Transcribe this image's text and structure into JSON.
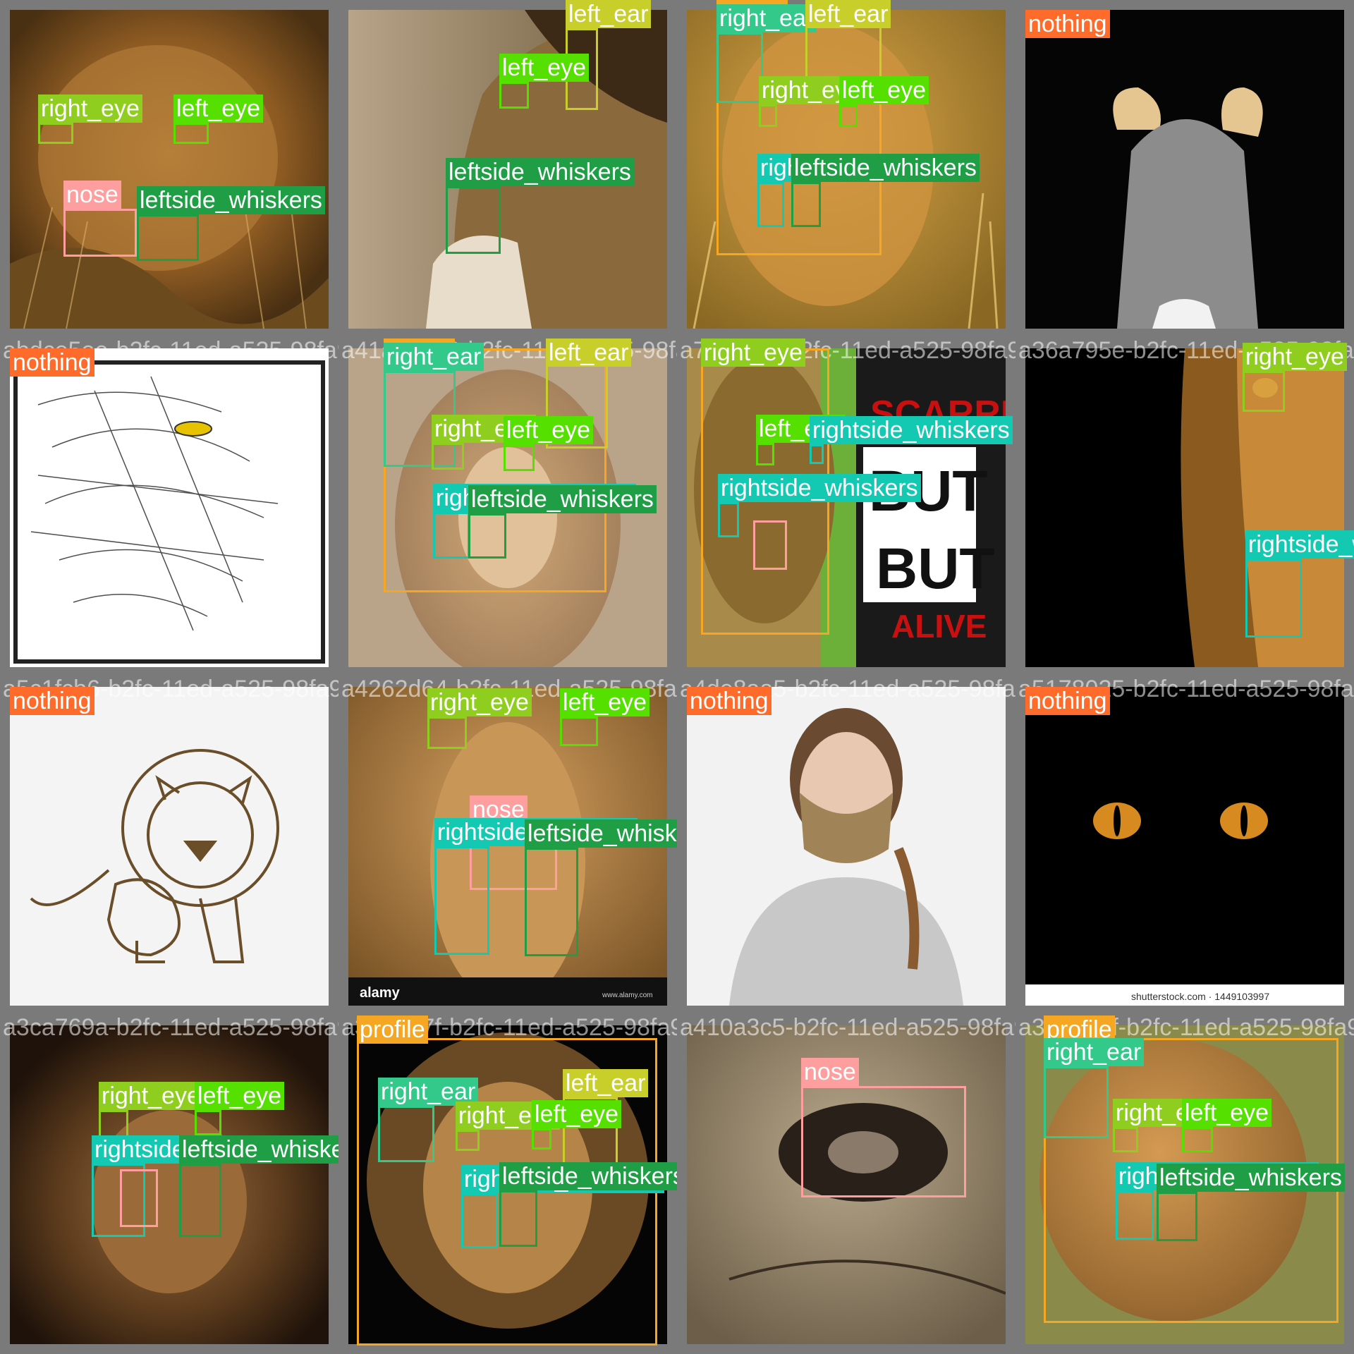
{
  "colors": {
    "nothing": "#ff6b2b",
    "profile": "#f5a623",
    "left_ear": "#c9cf2a",
    "right_ear": "#33c98a",
    "left_eye": "#55e000",
    "right_eye": "#8fce1e",
    "nose": "#ff9e9e",
    "leftside_whiskers": "#1f9e45",
    "rightside_whiskers": "#14c9b2"
  },
  "tiles": [
    {
      "filename": "",
      "scene": "lioness-grass",
      "dets": [
        {
          "cls": "right_eye",
          "label": "right_eye"
        },
        {
          "cls": "left_eye",
          "label": "left_eye"
        },
        {
          "cls": "nose",
          "label": "nose"
        },
        {
          "cls": "leftside_whiskers",
          "label": "leftside_whiskers"
        }
      ]
    },
    {
      "filename": "",
      "scene": "lion-profile",
      "dets": [
        {
          "cls": "left_ear",
          "label": "left_ear"
        },
        {
          "cls": "left_eye",
          "label": "left_eye"
        },
        {
          "cls": "leftside_whiskers",
          "label": "leftside_whiskers"
        }
      ]
    },
    {
      "filename": "",
      "scene": "lioness-bright",
      "dets": [
        {
          "cls": "profile",
          "label": "profile"
        },
        {
          "cls": "right_ear",
          "label": "right_ear"
        },
        {
          "cls": "left_ear",
          "label": "left_ear"
        },
        {
          "cls": "right_eye",
          "label": "right_eye"
        },
        {
          "cls": "left_eye",
          "label": "left_eye"
        },
        {
          "cls": "rightside_whiskers",
          "label": "rightside_whiskers"
        },
        {
          "cls": "leftside_whiskers",
          "label": "leftside_whiskers"
        }
      ]
    },
    {
      "filename": "",
      "scene": "headband",
      "dets": [
        {
          "cls": "nothing",
          "label": "nothing"
        }
      ]
    },
    {
      "filename": "abdce5ee-b2fc-11ed-a525-98fa9b3d2a7c.jpg",
      "scene": "sketch",
      "dets": [
        {
          "cls": "nothing",
          "label": "nothing"
        }
      ]
    },
    {
      "filename": "a41ac5e26-b2fc-11ed-a525-98fa9b3d2a7c.jpg",
      "scene": "lioness-front",
      "dets": [
        {
          "cls": "profile",
          "label": "profile"
        },
        {
          "cls": "right_ear",
          "label": "right_ear"
        },
        {
          "cls": "left_ear",
          "label": "left_ear"
        },
        {
          "cls": "right_eye",
          "label": "right_eye"
        },
        {
          "cls": "left_eye",
          "label": "left_eye"
        },
        {
          "cls": "rightside_whiskers",
          "label": "rightside_whiskers"
        },
        {
          "cls": "leftside_whiskers",
          "label": "leftside_whiskers"
        }
      ]
    },
    {
      "filename": "a7aef8c2-b2fc-11ed-a525-98fa9b3d2a7c.jpg",
      "scene": "scarred-poster",
      "dets": [
        {
          "cls": "profile",
          "label": "profile"
        },
        {
          "cls": "right_eye",
          "label": "right_eye"
        },
        {
          "cls": "left_eye",
          "label": "left_eye"
        },
        {
          "cls": "rightside_whiskers",
          "label": "rightside_whiskers"
        },
        {
          "cls": "rightside_whiskers",
          "label": "rightside_whiskers"
        },
        {
          "cls": "nose",
          "label": ""
        }
      ]
    },
    {
      "filename": "a36a795e-b2fc-11ed-a525-98fa9b3d2a7c.jpg",
      "scene": "dark-half",
      "dets": [
        {
          "cls": "right_eye",
          "label": "right_eye"
        },
        {
          "cls": "rightside_whiskers",
          "label": "rightside_whiskers"
        }
      ]
    },
    {
      "filename": "a5c1fcb6-b2fc-11ed-a525-98fa9b3d2a7c.jpg",
      "scene": "cartoon",
      "dets": [
        {
          "cls": "nothing",
          "label": "nothing"
        }
      ]
    },
    {
      "filename": "a4262d64-b2fc-11ed-a525-98fa9b3d2a7c.jpg",
      "scene": "alamy-lion",
      "dets": [
        {
          "cls": "right_eye",
          "label": "right_eye"
        },
        {
          "cls": "left_eye",
          "label": "left_eye"
        },
        {
          "cls": "nose",
          "label": "nose"
        },
        {
          "cls": "rightside_whiskers",
          "label": "rightside_whiskers"
        },
        {
          "cls": "leftside_whiskers",
          "label": "leftside_whiskers"
        }
      ]
    },
    {
      "filename": "a4de8aa5-b2fc-11ed-a525-98fa9b3d2a7c.jpg",
      "scene": "mask-woman",
      "dets": [
        {
          "cls": "nothing",
          "label": "nothing"
        }
      ]
    },
    {
      "filename": "a5178025-b2fc-11ed-a525-98fa9b3d2a7c.jpg",
      "scene": "cat-eyes",
      "dets": [
        {
          "cls": "nothing",
          "label": "nothing"
        }
      ]
    },
    {
      "filename": "a3ca769a-b2fc-11ed-a525-98fa9b3d2a7c.jpg",
      "scene": "dark-mane",
      "dets": [
        {
          "cls": "right_eye",
          "label": "right_eye"
        },
        {
          "cls": "left_eye",
          "label": "left_eye"
        },
        {
          "cls": "rightside_whiskers",
          "label": "rightside_whiskers"
        },
        {
          "cls": "leftside_whiskers",
          "label": "leftside_whiskers"
        },
        {
          "cls": "nose",
          "label": ""
        }
      ]
    },
    {
      "filename": "a3b5e57f-b2fc-11ed-a525-98fa9b3d2a7c.jpg",
      "scene": "lion-black-bg",
      "dets": [
        {
          "cls": "profile",
          "label": "profile"
        },
        {
          "cls": "right_ear",
          "label": "right_ear"
        },
        {
          "cls": "left_ear",
          "label": "left_ear"
        },
        {
          "cls": "right_eye",
          "label": "right_eye"
        },
        {
          "cls": "left_eye",
          "label": "left_eye"
        },
        {
          "cls": "rightside_whiskers",
          "label": "rightside_whiskers"
        },
        {
          "cls": "leftside_whiskers",
          "label": "leftside_whiskers"
        }
      ]
    },
    {
      "filename": "a410a3c5-b2fc-11ed-a525-98fa9b3d2a7c.jpg",
      "scene": "nose-closeup",
      "dets": [
        {
          "cls": "nose",
          "label": "nose"
        }
      ]
    },
    {
      "filename": "a3b5e57f-b2fc-11ed-a525-98fa9b3d2a7c.jpg",
      "scene": "lion-lying",
      "dets": [
        {
          "cls": "profile",
          "label": "profile"
        },
        {
          "cls": "right_ear",
          "label": "right_ear"
        },
        {
          "cls": "right_eye",
          "label": "right_eye"
        },
        {
          "cls": "left_eye",
          "label": "left_eye"
        },
        {
          "cls": "rightside_whiskers",
          "label": "rightside_whiskers"
        },
        {
          "cls": "leftside_whiskers",
          "label": "leftside_whiskers"
        }
      ]
    }
  ]
}
